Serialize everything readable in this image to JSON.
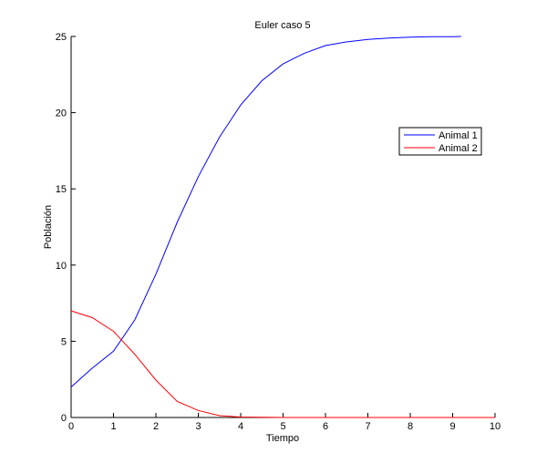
{
  "chart_data": {
    "type": "line",
    "title": "Euler caso 5",
    "xlabel": "Tiempo",
    "ylabel": "Población",
    "xlim": [
      0,
      10
    ],
    "ylim": [
      0,
      25
    ],
    "xticks": [
      "0",
      "1",
      "2",
      "3",
      "4",
      "5",
      "6",
      "7",
      "8",
      "9",
      "10"
    ],
    "yticks": [
      "0",
      "5",
      "10",
      "15",
      "20",
      "25"
    ],
    "grid": false,
    "legend_position": "right",
    "series": [
      {
        "name": "Animal 1",
        "color": "#0000ff",
        "x": [
          0,
          0.5,
          1,
          1.5,
          2,
          2.5,
          3,
          3.5,
          4,
          4.5,
          5,
          5.5,
          6,
          6.5,
          7,
          7.5,
          8,
          8.5,
          9,
          9.2
        ],
        "y": [
          2,
          3.25,
          4.35,
          6.4,
          9.4,
          12.8,
          15.8,
          18.4,
          20.5,
          22.1,
          23.2,
          23.9,
          24.4,
          24.65,
          24.8,
          24.9,
          24.95,
          24.98,
          24.99,
          25
        ]
      },
      {
        "name": "Animal 2",
        "color": "#ff0000",
        "x": [
          0,
          0.5,
          1,
          1.5,
          2,
          2.5,
          3,
          3.5,
          4,
          4.5,
          5,
          6,
          7,
          8,
          9,
          10
        ],
        "y": [
          7,
          6.55,
          5.65,
          4.15,
          2.45,
          1.06,
          0.46,
          0.12,
          0.03,
          0.01,
          0,
          0,
          0,
          0,
          0,
          0
        ]
      }
    ]
  }
}
